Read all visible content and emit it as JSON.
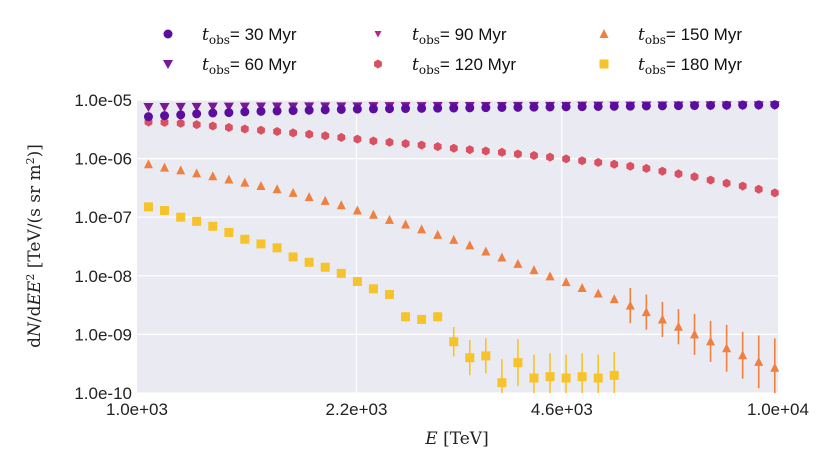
{
  "chart_data": {
    "type": "scatter",
    "xscale": "log",
    "yscale": "log",
    "xlim": [
      1000,
      10000
    ],
    "ylim": [
      1e-10,
      1e-05
    ],
    "xticks": [
      1000,
      2200,
      4600,
      10000
    ],
    "xtick_labels": [
      "1.0e+03",
      "2.2e+03",
      "4.6e+03",
      "1.0e+04"
    ],
    "yticks": [
      1e-05,
      1e-06,
      1e-07,
      1e-08,
      1e-09,
      1e-10
    ],
    "ytick_labels": [
      "1.0e-05",
      "1.0e-06",
      "1.0e-07",
      "1.0e-08",
      "1.0e-09",
      "1.0e-10"
    ],
    "xlabel": "E [TeV]",
    "ylabel": "dN/dE E^2 [TeV/(s sr m^2)]",
    "grid": true,
    "legend_position": "top",
    "series": [
      {
        "name": "t_obs = 30 Myr",
        "label_prefix": "t",
        "label_sub": "obs",
        "label_value": "= 30 Myr",
        "color": "#5b0e9e",
        "marker": "circle",
        "x": [
          1042,
          1104,
          1170,
          1239,
          1313,
          1391,
          1473,
          1561,
          1654,
          1752,
          1856,
          1966,
          2083,
          2207,
          2338,
          2477,
          2624,
          2780,
          2945,
          3120,
          3305,
          3501,
          3709,
          3929,
          4162,
          4409,
          4671,
          4948,
          5242,
          5553,
          5883,
          6232,
          6602,
          6994,
          7409,
          7849,
          8315,
          8808,
          9331,
          9885
        ],
        "y": [
          5.2e-06,
          5.4e-06,
          5.6e-06,
          5.8e-06,
          6e-06,
          6.1e-06,
          6.3e-06,
          6.4e-06,
          6.5e-06,
          6.6e-06,
          6.7e-06,
          6.8e-06,
          6.9e-06,
          7e-06,
          7.05e-06,
          7.1e-06,
          7.15e-06,
          7.2e-06,
          7.25e-06,
          7.3e-06,
          7.35e-06,
          7.4e-06,
          7.45e-06,
          7.5e-06,
          7.55e-06,
          7.6e-06,
          7.65e-06,
          7.7e-06,
          7.75e-06,
          7.8e-06,
          7.85e-06,
          7.9e-06,
          7.95e-06,
          8e-06,
          8.05e-06,
          8.1e-06,
          8.15e-06,
          8.2e-06,
          8.25e-06,
          8.3e-06
        ]
      },
      {
        "name": "t_obs = 60 Myr",
        "label_prefix": "t",
        "label_sub": "obs",
        "label_value": "= 60 Myr",
        "color": "#7a1797",
        "marker": "triangle-down",
        "x": [
          1042,
          1104,
          1170,
          1239,
          1313,
          1391,
          1473,
          1561,
          1654,
          1752,
          1856,
          1966,
          2083,
          2207,
          2338,
          2477,
          2624,
          2780,
          2945,
          3120,
          3305,
          3501,
          3709,
          3929,
          4162,
          4409,
          4671,
          4948,
          5242,
          5553,
          5883,
          6232,
          6602,
          6994,
          7409,
          7849,
          8315,
          8808,
          9331,
          9885
        ],
        "y": [
          7.6e-06,
          7.6e-06,
          7.65e-06,
          7.65e-06,
          7.7e-06,
          7.7e-06,
          7.7e-06,
          7.75e-06,
          7.75e-06,
          7.75e-06,
          7.8e-06,
          7.8e-06,
          7.8e-06,
          7.8e-06,
          7.85e-06,
          7.85e-06,
          7.85e-06,
          7.85e-06,
          7.9e-06,
          7.9e-06,
          7.9e-06,
          7.9e-06,
          7.9e-06,
          7.95e-06,
          7.95e-06,
          7.95e-06,
          7.95e-06,
          8e-06,
          8e-06,
          8e-06,
          8e-06,
          8.05e-06,
          8.05e-06,
          8.05e-06,
          8.05e-06,
          8.1e-06,
          8.1e-06,
          8.1e-06,
          8.1e-06,
          8.15e-06
        ]
      },
      {
        "name": "t_obs = 90 Myr",
        "label_prefix": "t",
        "label_sub": "obs",
        "label_value": "= 90 Myr",
        "color": "#b5287e",
        "marker": "triangle-down-small",
        "x": [
          1042,
          1104,
          1170,
          1239,
          1313,
          1391,
          1473,
          1561,
          1654,
          1752,
          1856,
          1966,
          2083,
          2207,
          2338,
          2477,
          2624,
          2780,
          2945,
          3120,
          3305,
          3501,
          3709,
          3929,
          4162,
          4409,
          4671,
          4948,
          5242,
          5553,
          5883,
          6232,
          6602,
          6994,
          7409,
          7849,
          8315,
          8808,
          9331,
          9885
        ],
        "y": [
          7.5e-06,
          7.5e-06,
          7.55e-06,
          7.55e-06,
          7.6e-06,
          7.6e-06,
          7.6e-06,
          7.65e-06,
          7.65e-06,
          7.65e-06,
          7.7e-06,
          7.7e-06,
          7.7e-06,
          7.7e-06,
          7.75e-06,
          7.75e-06,
          7.75e-06,
          7.75e-06,
          7.8e-06,
          7.8e-06,
          7.8e-06,
          7.8e-06,
          7.8e-06,
          7.85e-06,
          7.85e-06,
          7.85e-06,
          7.85e-06,
          7.9e-06,
          7.9e-06,
          7.9e-06,
          7.9e-06,
          7.95e-06,
          7.95e-06,
          7.95e-06,
          7.95e-06,
          8e-06,
          8e-06,
          8e-06,
          8e-06,
          8.05e-06
        ]
      },
      {
        "name": "t_obs = 120 Myr",
        "label_prefix": "t",
        "label_sub": "obs",
        "label_value": "= 120 Myr",
        "color": "#d95060",
        "marker": "hexagon",
        "x": [
          1042,
          1104,
          1170,
          1239,
          1313,
          1391,
          1473,
          1561,
          1654,
          1752,
          1856,
          1966,
          2083,
          2207,
          2338,
          2477,
          2624,
          2780,
          2945,
          3120,
          3305,
          3501,
          3709,
          3929,
          4162,
          4409,
          4671,
          4948,
          5242,
          5553,
          5883,
          6232,
          6602,
          6994,
          7409,
          7849,
          8315,
          8808,
          9331,
          9885
        ],
        "y": [
          4.2e-06,
          4.15e-06,
          4e-06,
          3.8e-06,
          3.6e-06,
          3.4e-06,
          3.2e-06,
          3.05e-06,
          2.9e-06,
          2.75e-06,
          2.6e-06,
          2.45e-06,
          2.3e-06,
          2.15e-06,
          2e-06,
          1.9e-06,
          1.8e-06,
          1.7e-06,
          1.6e-06,
          1.5e-06,
          1.42e-06,
          1.35e-06,
          1.28e-06,
          1.2e-06,
          1.13e-06,
          1.06e-06,
          9.9e-07,
          9.2e-07,
          8.6e-07,
          8e-07,
          7.4e-07,
          6.8e-07,
          6.1e-07,
          5.5e-07,
          4.9e-07,
          4.3e-07,
          3.8e-07,
          3.4e-07,
          3e-07,
          2.6e-07
        ]
      },
      {
        "name": "t_obs = 150 Myr",
        "label_prefix": "t",
        "label_sub": "obs",
        "label_value": "= 150 Myr",
        "color": "#ee8040",
        "marker": "triangle-up",
        "x": [
          1042,
          1104,
          1170,
          1239,
          1313,
          1391,
          1473,
          1561,
          1654,
          1752,
          1856,
          1966,
          2083,
          2207,
          2338,
          2477,
          2624,
          2780,
          2945,
          3120,
          3305,
          3501,
          3709,
          3929,
          4162,
          4409,
          4671,
          4948,
          5242,
          5553,
          5883,
          6232,
          6602,
          6994,
          7409,
          7849,
          8315,
          8808,
          9331,
          9885
        ],
        "y": [
          8e-07,
          7e-07,
          6.3e-07,
          5.6e-07,
          5e-07,
          4.4e-07,
          3.9e-07,
          3.4e-07,
          3e-07,
          2.6e-07,
          2.2e-07,
          1.9e-07,
          1.6e-07,
          1.3e-07,
          1.1e-07,
          9e-08,
          7.5e-08,
          6.2e-08,
          5e-08,
          4.1e-08,
          3.3e-08,
          2.6e-08,
          2.05e-08,
          1.6e-08,
          1.25e-08,
          9.8e-09,
          7.8e-09,
          6.2e-09,
          5e-09,
          4e-09,
          3.1e-09,
          2.4e-09,
          1.8e-09,
          1.35e-09,
          1e-09,
          7.6e-10,
          5.8e-10,
          4.4e-10,
          3.4e-10,
          2.7e-10
        ],
        "y_err": [
          0,
          0,
          0,
          0,
          0,
          0,
          0,
          0,
          0,
          0,
          0,
          0,
          0,
          0,
          0,
          0,
          0,
          0,
          0,
          0,
          0,
          0,
          0,
          0,
          0,
          0,
          0,
          0,
          0,
          0,
          0.3,
          0.3,
          0.3,
          0.3,
          0.35,
          0.35,
          0.4,
          0.4,
          0.45,
          0.5
        ]
      },
      {
        "name": "t_obs = 180 Myr",
        "label_prefix": "t",
        "label_sub": "obs",
        "label_value": "= 180 Myr",
        "color": "#f7c32a",
        "marker": "square",
        "x": [
          1042,
          1104,
          1170,
          1239,
          1313,
          1391,
          1473,
          1561,
          1654,
          1752,
          1856,
          1966,
          2083,
          2207,
          2338,
          2477,
          2624,
          2780,
          2945,
          3120,
          3305,
          3501,
          3709,
          3929,
          4162,
          4409,
          4671,
          4948,
          5242,
          5553
        ],
        "y": [
          1.5e-07,
          1.3e-07,
          1e-07,
          8.5e-08,
          7e-08,
          5.5e-08,
          4.2e-08,
          3.5e-08,
          3e-08,
          2.1e-08,
          1.7e-08,
          1.4e-08,
          1.1e-08,
          8e-09,
          6e-09,
          4.8e-09,
          2e-09,
          1.8e-09,
          2e-09,
          7.5e-10,
          4e-10,
          4.3e-10,
          1.5e-10,
          3.3e-10,
          1.8e-10,
          1.9e-10,
          1.8e-10,
          1.9e-10,
          1.8e-10,
          2e-10
        ],
        "y_err": [
          0,
          0,
          0,
          0,
          0,
          0,
          0,
          0,
          0,
          0,
          0,
          0,
          0,
          0,
          0,
          0,
          0.08,
          0.08,
          0.08,
          0.25,
          0.3,
          0.3,
          0.4,
          0.4,
          0.4,
          0.4,
          0.4,
          0.4,
          0.4,
          0.4
        ]
      }
    ]
  }
}
